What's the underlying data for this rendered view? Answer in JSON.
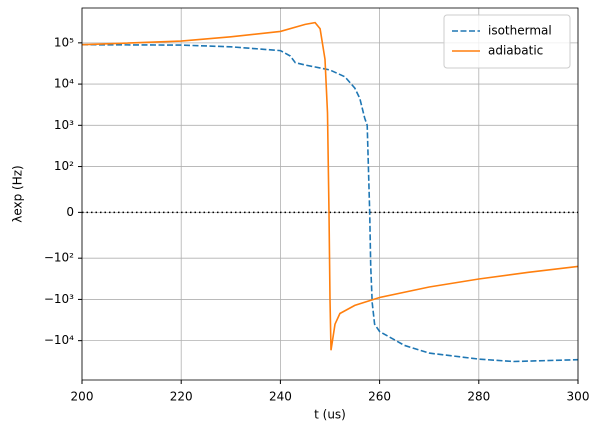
{
  "chart_data": {
    "type": "line",
    "xlabel": "t (us)",
    "ylabel": "λexp (Hz)",
    "xlim": [
      200,
      300
    ],
    "xticks": [
      200,
      220,
      240,
      260,
      280,
      300
    ],
    "yscale": "symlog",
    "linthresh": 100,
    "ylim": [
      -90000,
      700000
    ],
    "yticks": [
      {
        "value": -10000,
        "label": "−10⁴"
      },
      {
        "value": -1000,
        "label": "−10³"
      },
      {
        "value": -100,
        "label": "−10²"
      },
      0,
      {
        "value": 100,
        "label": "10²"
      },
      {
        "value": 1000,
        "label": "10³"
      },
      {
        "value": 10000,
        "label": "10⁴"
      },
      {
        "value": 100000,
        "label": "10⁵"
      }
    ],
    "grid": true,
    "legend": "upper right",
    "hline": 0,
    "series": [
      {
        "name": "isothermal",
        "color": "#1f77b4",
        "style": "dashed",
        "x": [
          200,
          220,
          230,
          240,
          242,
          243,
          245,
          250,
          253,
          255,
          256,
          257,
          257.5,
          258,
          258.2,
          258.5,
          259,
          260,
          265,
          270,
          280,
          287,
          300
        ],
        "values": [
          90000,
          88000,
          80000,
          65000,
          48000,
          33000,
          29000,
          22000,
          15000,
          8000,
          4500,
          1500,
          1000,
          0,
          -150,
          -1200,
          -4000,
          -6000,
          -13000,
          -20000,
          -28000,
          -32000,
          -29000
        ]
      },
      {
        "name": "adiabatic",
        "color": "#ff7f0e",
        "style": "solid",
        "x": [
          200,
          220,
          230,
          240,
          245,
          247,
          248,
          249,
          249.5,
          249.8,
          250,
          250.2,
          251,
          252,
          255,
          260,
          270,
          280,
          290,
          300
        ],
        "values": [
          90000,
          110000,
          140000,
          190000,
          280000,
          310000,
          220000,
          40000,
          2000,
          0,
          -1000,
          -17000,
          -4000,
          -2200,
          -1400,
          -900,
          -500,
          -320,
          -220,
          -158
        ]
      }
    ]
  }
}
